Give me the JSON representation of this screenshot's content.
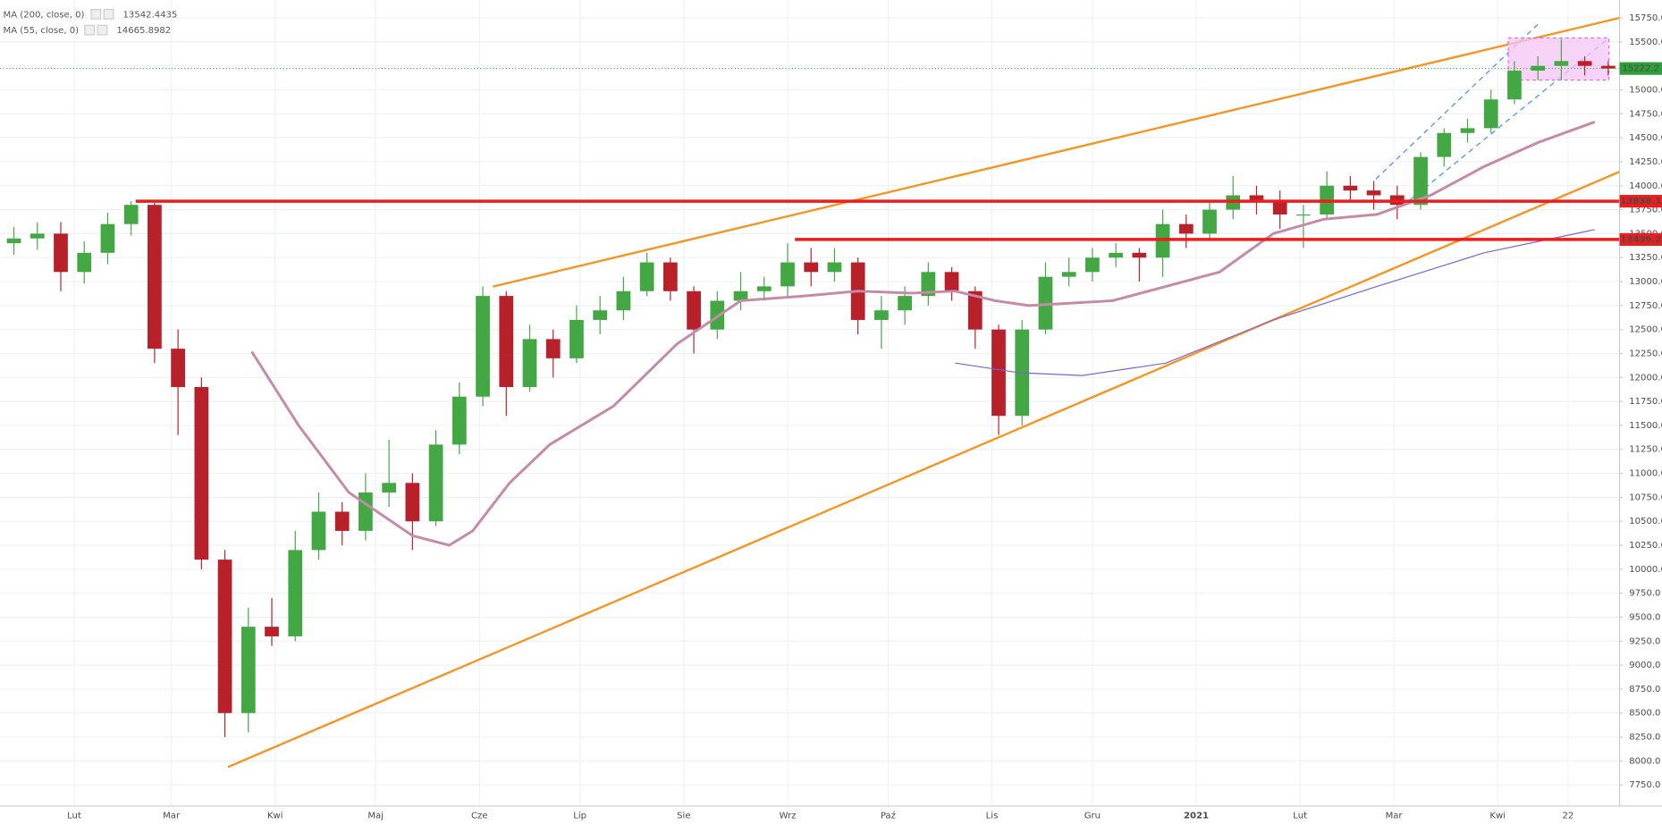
{
  "chart_data": {
    "type": "candlestick",
    "x": [
      13,
      20,
      27,
      34,
      41,
      48,
      55,
      62,
      69,
      76,
      83,
      90,
      97,
      104,
      111,
      118,
      125,
      132,
      139,
      146,
      153,
      160,
      167,
      174,
      181,
      188,
      195,
      202,
      209,
      216,
      223,
      230,
      237,
      244,
      251,
      258,
      265,
      272,
      279,
      286,
      293,
      300,
      307,
      314,
      321,
      328,
      335,
      342,
      349,
      356,
      363,
      370,
      377,
      384,
      391,
      398,
      405,
      412,
      419,
      426,
      433,
      440,
      447,
      454,
      461,
      468,
      475,
      482,
      489
    ],
    "open": [
      13400,
      13450,
      13500,
      13100,
      13300,
      13600,
      13800,
      12300,
      11900,
      10100,
      8500,
      9400,
      9300,
      10200,
      10600,
      10400,
      10800,
      10900,
      10500,
      11300,
      11800,
      12850,
      11900,
      12400,
      12200,
      12600,
      12700,
      12900,
      13200,
      12900,
      12500,
      12800,
      12900,
      12950,
      13200,
      13100,
      13200,
      12600,
      12700,
      12850,
      13100,
      12900,
      12500,
      11600,
      12500,
      13050,
      13100,
      13250,
      13300,
      13250,
      13600,
      13500,
      13750,
      13900,
      13850,
      13700,
      13700,
      14000,
      13950,
      13900,
      13800,
      14300,
      14550,
      14600,
      14900,
      15200,
      15250,
      15300,
      15250
    ],
    "high": [
      13570,
      13620,
      13620,
      13420,
      13720,
      13838,
      13850,
      12500,
      12000,
      10200,
      9600,
      9700,
      10400,
      10800,
      10700,
      11000,
      11350,
      11000,
      11450,
      11950,
      12950,
      12900,
      12550,
      12500,
      12750,
      12850,
      13050,
      13300,
      13250,
      12950,
      12900,
      13100,
      13050,
      13400,
      13350,
      13350,
      13250,
      12850,
      12950,
      13200,
      13150,
      12950,
      12550,
      12600,
      13200,
      13250,
      13350,
      13400,
      13350,
      13750,
      13700,
      13850,
      14100,
      14000,
      13950,
      13800,
      14150,
      14100,
      14050,
      14000,
      14350,
      14600,
      14700,
      15000,
      15300,
      15350,
      15530,
      15350,
      15300
    ],
    "low": [
      13280,
      13330,
      12900,
      12980,
      13180,
      13480,
      12150,
      11400,
      10000,
      8250,
      8300,
      9200,
      9250,
      10100,
      10250,
      10300,
      10650,
      10200,
      10450,
      11200,
      11700,
      11600,
      11850,
      12000,
      12150,
      12450,
      12600,
      12850,
      12800,
      12250,
      12400,
      12700,
      12800,
      12850,
      12950,
      13000,
      12450,
      12300,
      12550,
      12750,
      12800,
      12300,
      11400,
      11500,
      12450,
      12950,
      13000,
      13150,
      13000,
      13050,
      13350,
      13450,
      13650,
      13700,
      13550,
      13350,
      13650,
      13850,
      13750,
      13650,
      13750,
      14200,
      14450,
      14550,
      14850,
      15100,
      15100,
      15150,
      15150
    ],
    "close": [
      13450,
      13500,
      13100,
      13300,
      13600,
      13800,
      12300,
      11900,
      10100,
      8500,
      9400,
      9300,
      10200,
      10600,
      10400,
      10800,
      10900,
      10500,
      11300,
      11800,
      12850,
      11900,
      12400,
      12200,
      12600,
      12700,
      12900,
      13200,
      12900,
      12500,
      12800,
      12900,
      12950,
      13200,
      13100,
      13200,
      12600,
      12700,
      12850,
      13100,
      12900,
      12500,
      11600,
      12500,
      13050,
      13100,
      13250,
      13300,
      13250,
      13600,
      13500,
      13750,
      13900,
      13850,
      13700,
      13700,
      14000,
      13950,
      13900,
      13800,
      14300,
      14550,
      14600,
      14900,
      15200,
      15250,
      15300,
      15250,
      15222.2
    ],
    "up_color": "#43a843",
    "down_color": "#b8202a",
    "series": [
      {
        "name": "MA (200, close, 0)",
        "legend_value": 13542.4435,
        "color": "#7b61d9",
        "width": 1,
        "x": [
          294,
          313,
          332,
          357,
          389,
          420,
          452,
          485
        ],
        "values": [
          12150,
          12050,
          12020,
          12150,
          12600,
          12950,
          13300,
          13542.4435
        ]
      },
      {
        "name": "MA (55, close, 0)",
        "legend_value": 14665.8982,
        "color": "#c48aa8",
        "width": 2.5,
        "x": [
          84,
          98,
          113,
          132,
          143,
          150,
          161,
          173,
          192,
          211,
          230,
          249,
          265,
          281,
          294,
          306,
          316,
          341,
          357,
          373,
          389,
          404,
          420,
          436,
          452,
          468,
          485
        ],
        "values": [
          12270,
          11500,
          10800,
          10350,
          10250,
          10400,
          10900,
          11300,
          11700,
          12350,
          12800,
          12850,
          12900,
          12880,
          12900,
          12800,
          12750,
          12800,
          12950,
          13100,
          13500,
          13650,
          13700,
          13900,
          14200,
          14450,
          14665.8982
        ]
      }
    ],
    "hlines": [
      {
        "value": 13838.1,
        "color": "#ee1c1c"
      },
      {
        "value": 13439.2,
        "color": "#ee1c1c"
      }
    ],
    "last_color": "#2e9d3a",
    "xlim": [
      8.85,
      492.4
    ],
    "ylim": [
      7530.2,
      15936.8
    ],
    "grid": true,
    "xticks": [
      {
        "value": 31,
        "label": "Lut"
      },
      {
        "value": 60,
        "label": "Mar"
      },
      {
        "value": 91,
        "label": "Kwi"
      },
      {
        "value": 121,
        "label": "Maj"
      },
      {
        "value": 152,
        "label": "Cze"
      },
      {
        "value": 182,
        "label": "Lip"
      },
      {
        "value": 213,
        "label": "Sie"
      },
      {
        "value": 244,
        "label": "Wrz"
      },
      {
        "value": 274,
        "label": "Paź"
      },
      {
        "value": 305,
        "label": "Lis"
      },
      {
        "value": 335,
        "label": "Gru"
      },
      {
        "value": 366,
        "label": "2021"
      },
      {
        "value": 397,
        "label": "Lut"
      },
      {
        "value": 425,
        "label": "Mar"
      },
      {
        "value": 456,
        "label": "Kwi"
      },
      {
        "value": 477,
        "label": "22"
      }
    ],
    "yticks": [
      {
        "value": 7750,
        "label": "7750.0"
      },
      {
        "value": 8000,
        "label": "8000.0"
      },
      {
        "value": 8250,
        "label": "8250.0"
      },
      {
        "value": 8500,
        "label": "8500.0"
      },
      {
        "value": 8750,
        "label": "8750.0"
      },
      {
        "value": 9000,
        "label": "9000.0"
      },
      {
        "value": 9250,
        "label": "9250.0"
      },
      {
        "value": 9500,
        "label": "9500.0"
      },
      {
        "value": 9750,
        "label": "9750.0"
      },
      {
        "value": 10000,
        "label": "10000.0"
      },
      {
        "value": 10250,
        "label": "10250.0"
      },
      {
        "value": 10500,
        "label": "10500.0"
      },
      {
        "value": 10750,
        "label": "10750.0"
      },
      {
        "value": 11000,
        "label": "11000.0"
      },
      {
        "value": 11250,
        "label": "11250.0"
      },
      {
        "value": 11500,
        "label": "11500.0"
      },
      {
        "value": 11750,
        "label": "11750.0"
      },
      {
        "value": 12000,
        "label": "12000.0"
      },
      {
        "value": 12250,
        "label": "12250.0"
      },
      {
        "value": 12500,
        "label": "12500.0"
      },
      {
        "value": 12750,
        "label": "12750.0"
      },
      {
        "value": 13000,
        "label": "13000.0"
      },
      {
        "value": 13250,
        "label": "13250.0"
      },
      {
        "value": 13500,
        "label": "13500.0"
      },
      {
        "value": 13750,
        "label": "13750.0"
      },
      {
        "value": 14000,
        "label": "14000.0"
      },
      {
        "value": 14250,
        "label": "14250.0"
      },
      {
        "value": 14500,
        "label": "14500.0"
      },
      {
        "value": 14750,
        "label": "14750.0"
      },
      {
        "value": 15000,
        "label": "15000.0"
      },
      {
        "value": 15250,
        "label": "15250.0"
      },
      {
        "value": 15500,
        "label": "15500.0"
      },
      {
        "value": 15750,
        "label": "15750.0"
      }
    ]
  }
}
